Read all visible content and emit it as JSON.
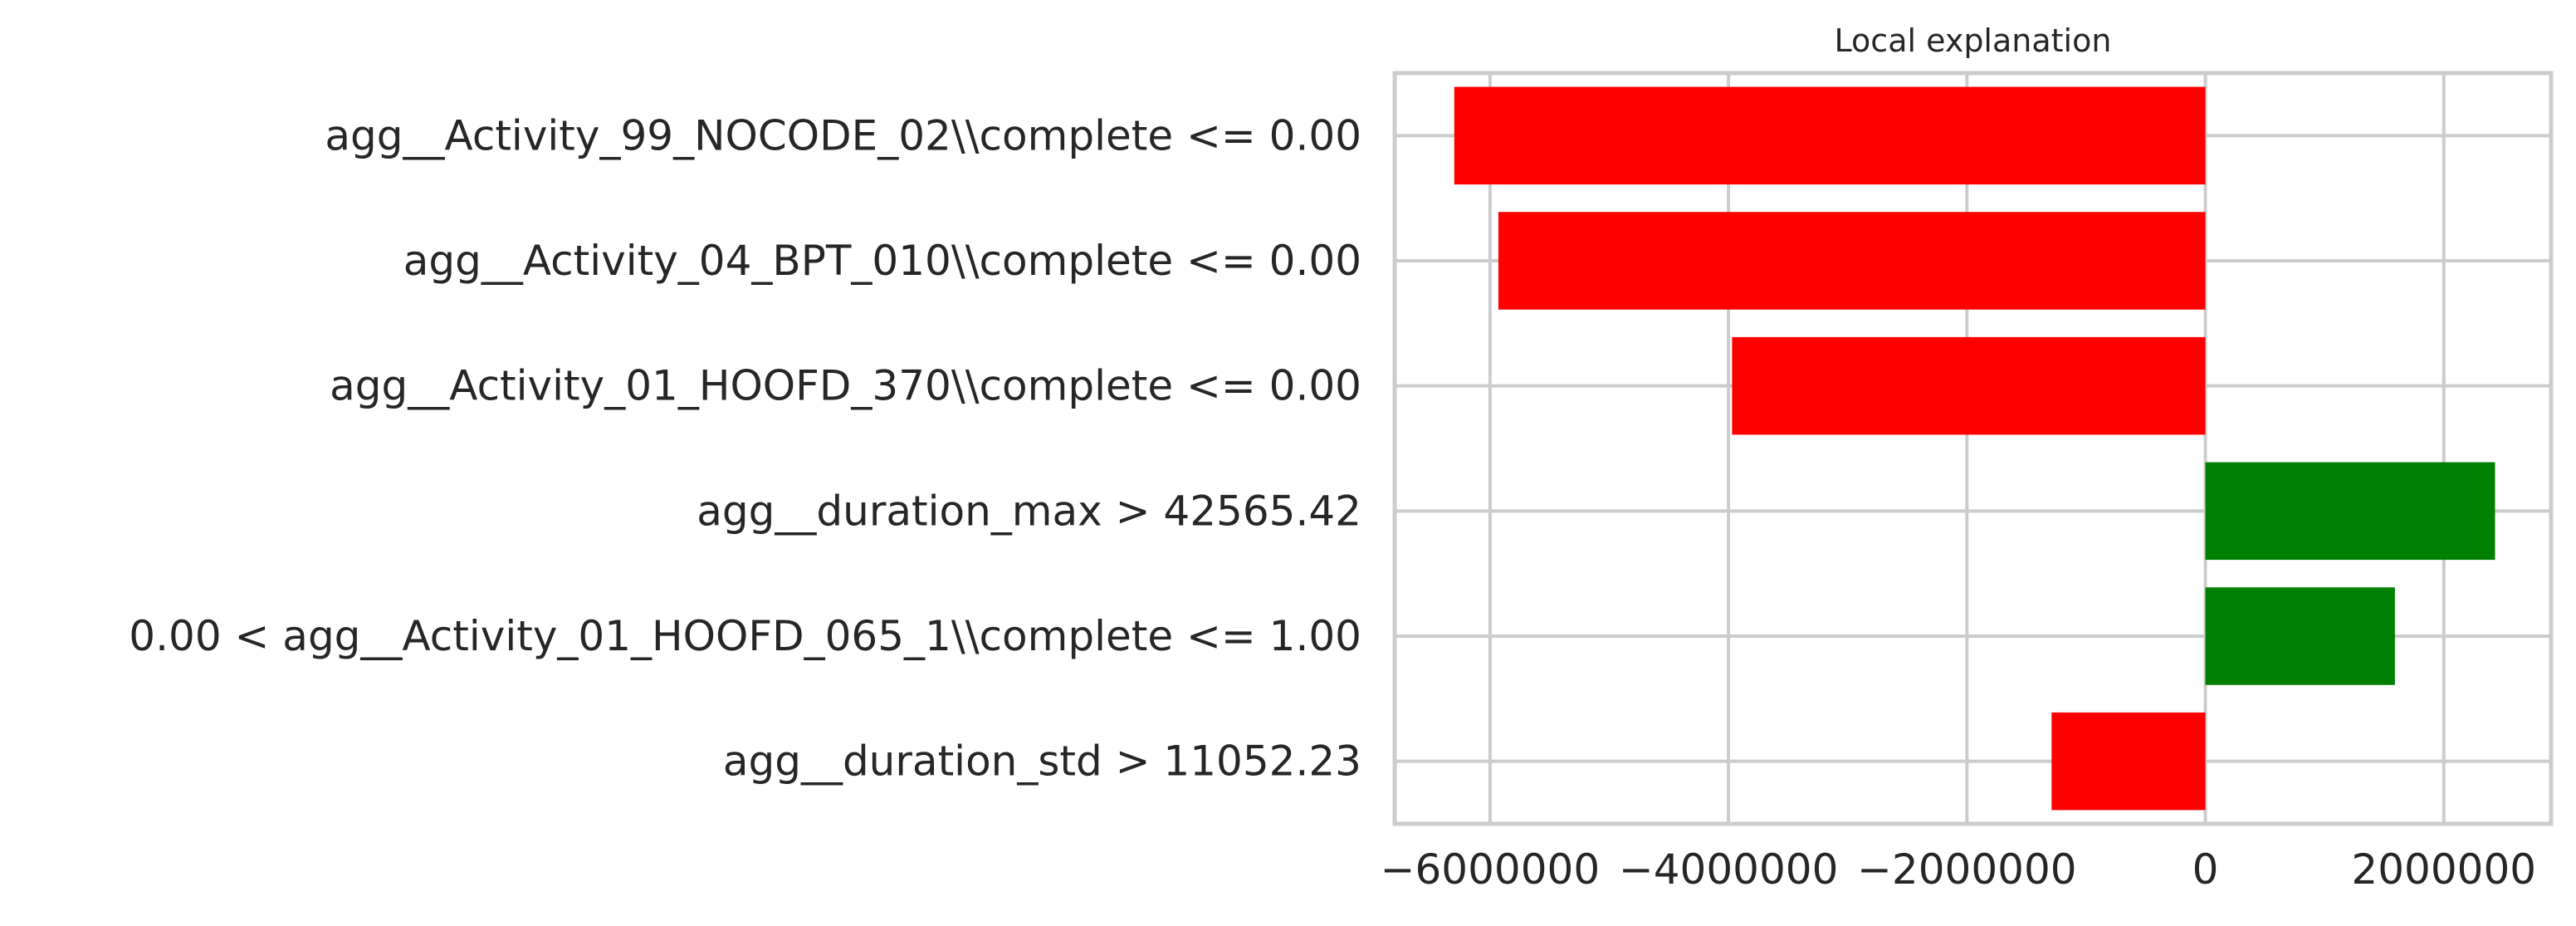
{
  "chart_data": {
    "type": "bar",
    "orientation": "horizontal",
    "title": "Local explanation",
    "xlabel": "",
    "ylabel": "",
    "categories": [
      "agg__Activity_99_NOCODE_02\\\\complete <= 0.00",
      "agg__Activity_04_BPT_010\\\\complete <= 0.00",
      "agg__Activity_01_HOOFD_370\\\\complete <= 0.00",
      "agg__duration_max > 42565.42",
      "0.00 < agg__Activity_01_HOOFD_065_1\\\\complete <= 1.00",
      "agg__duration_std > 11052.23"
    ],
    "values": [
      -6300000,
      -5930000,
      -3970000,
      2430000,
      1590000,
      -1290000
    ],
    "colors": [
      "#ff0000",
      "#ff0000",
      "#ff0000",
      "#008000",
      "#008000",
      "#ff0000"
    ],
    "positive_color": "#008000",
    "negative_color": "#ff0000",
    "xlim": [
      -6800000,
      2900000
    ],
    "xticks": [
      -6000000,
      -4000000,
      -2000000,
      0,
      2000000
    ],
    "xtick_labels": [
      "−6000000",
      "−4000000",
      "−2000000",
      "0",
      "2000000"
    ],
    "grid": true,
    "legend": "none"
  }
}
